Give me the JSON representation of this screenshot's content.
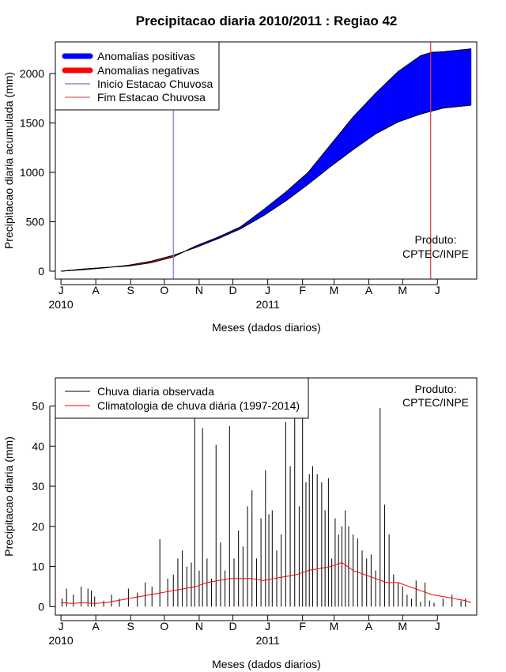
{
  "chart_data": [
    {
      "type": "area",
      "title": "Precipitacao diaria 2010/2011 : Regiao 42",
      "xlabel": "Meses (dados diarios)",
      "ylabel": "Precipitacao diaria acumulada (mm)",
      "xlim_day": [
        -5,
        370
      ],
      "ylim": [
        -80,
        2320
      ],
      "y_ticks": [
        0,
        500,
        1000,
        1500,
        2000
      ],
      "month_ticks": [
        {
          "label": "J",
          "day": 0
        },
        {
          "label": "A",
          "day": 31
        },
        {
          "label": "S",
          "day": 62
        },
        {
          "label": "O",
          "day": 92
        },
        {
          "label": "N",
          "day": 123
        },
        {
          "label": "D",
          "day": 153
        },
        {
          "label": "J",
          "day": 184
        },
        {
          "label": "F",
          "day": 215
        },
        {
          "label": "M",
          "day": 243
        },
        {
          "label": "A",
          "day": 274
        },
        {
          "label": "M",
          "day": 304
        },
        {
          "label": "J",
          "day": 335
        }
      ],
      "year_labels": [
        {
          "label": "2010",
          "day": 0
        },
        {
          "label": "2011",
          "day": 184
        }
      ],
      "legend": {
        "position": "top-left",
        "entries": [
          "Anomalias positivas",
          "Anomalias negativas",
          "Inicio Estacao Chuvosa",
          "Fim Estacao Chuvosa"
        ]
      },
      "annotation": [
        "Produto:",
        "CPTEC/INPE"
      ],
      "onset_day": 100,
      "end_day": 329,
      "series": [
        {
          "name": "Climatologia acumulada",
          "color": "#000000",
          "x": [
            0,
            20,
            40,
            60,
            80,
            100,
            120,
            140,
            160,
            180,
            200,
            220,
            240,
            260,
            280,
            300,
            320,
            340,
            365
          ],
          "values": [
            0,
            15,
            35,
            60,
            100,
            160,
            240,
            330,
            430,
            560,
            710,
            880,
            1060,
            1230,
            1390,
            1510,
            1590,
            1650,
            1680
          ]
        },
        {
          "name": "Observado acumulado",
          "color": "#000000",
          "x": [
            0,
            20,
            40,
            60,
            80,
            100,
            120,
            140,
            160,
            180,
            200,
            220,
            240,
            260,
            280,
            300,
            320,
            330,
            340,
            365
          ],
          "values": [
            0,
            22,
            38,
            52,
            85,
            145,
            255,
            345,
            450,
            620,
            800,
            1000,
            1280,
            1560,
            1800,
            2020,
            2180,
            2215,
            2220,
            2250
          ]
        }
      ],
      "colors": {
        "positive": "#0000ff",
        "negative": "#ff0000",
        "onset_line": "#7b7bd6",
        "end_line": "#d63b3b"
      }
    },
    {
      "type": "bar",
      "xlabel": "Meses (dados diarios)",
      "ylabel": "Precipitacao diaria (mm)",
      "xlim_day": [
        -5,
        370
      ],
      "ylim": [
        -2.1,
        57
      ],
      "y_ticks": [
        0,
        10,
        20,
        30,
        40,
        50
      ],
      "month_ticks": [
        {
          "label": "J",
          "day": 0
        },
        {
          "label": "A",
          "day": 31
        },
        {
          "label": "S",
          "day": 62
        },
        {
          "label": "O",
          "day": 92
        },
        {
          "label": "N",
          "day": 123
        },
        {
          "label": "D",
          "day": 153
        },
        {
          "label": "J",
          "day": 184
        },
        {
          "label": "F",
          "day": 215
        },
        {
          "label": "M",
          "day": 243
        },
        {
          "label": "A",
          "day": 274
        },
        {
          "label": "M",
          "day": 304
        },
        {
          "label": "J",
          "day": 335
        }
      ],
      "year_labels": [
        {
          "label": "2010",
          "day": 0
        },
        {
          "label": "2011",
          "day": 184
        }
      ],
      "legend": {
        "position": "top-left",
        "entries": [
          "Chuva diaria observada",
          "Climatologia de chuva diária (1997-2014)"
        ]
      },
      "annotation": [
        "Produto:",
        "CPTEC/INPE"
      ],
      "series": [
        {
          "name": "Chuva diaria observada",
          "color": "#000000",
          "x": [
            1,
            5,
            11,
            18,
            24,
            27,
            30,
            38,
            45,
            52,
            60,
            68,
            75,
            81,
            88,
            95,
            100,
            104,
            108,
            112,
            116,
            119,
            123,
            126,
            130,
            134,
            138,
            142,
            146,
            150,
            154,
            158,
            162,
            166,
            170,
            174,
            178,
            182,
            185,
            188,
            192,
            196,
            200,
            204,
            208,
            212,
            215,
            218,
            221,
            224,
            228,
            232,
            235,
            238,
            241,
            244,
            247,
            250,
            253,
            256,
            260,
            264,
            268,
            272,
            276,
            280,
            284,
            288,
            292,
            296,
            300,
            304,
            308,
            312,
            316,
            320,
            324,
            328,
            332,
            340,
            348,
            356,
            360
          ],
          "values": [
            2,
            4.5,
            3,
            5,
            4.5,
            4,
            2.5,
            1.5,
            3,
            2,
            4.5,
            3.5,
            6,
            5,
            16.8,
            7,
            8,
            12,
            14,
            10,
            11,
            47,
            9,
            44.5,
            12,
            7,
            40.3,
            16,
            9,
            45,
            12,
            19,
            15,
            25,
            29,
            12,
            22,
            34,
            23,
            24,
            14,
            18,
            46,
            35,
            47,
            25,
            50,
            31,
            33,
            35,
            33,
            31,
            24,
            32,
            12,
            22,
            18,
            20,
            24,
            20,
            18,
            17,
            14,
            12,
            13,
            9,
            49.5,
            25.4,
            18,
            8,
            6,
            5,
            3,
            2,
            6.5,
            1.2,
            6,
            1.5,
            1,
            2,
            3,
            1.5,
            2
          ]
        },
        {
          "name": "Climatologia de chuva diária (1997-2014)",
          "color": "#ff0000",
          "x": [
            0,
            10,
            20,
            30,
            40,
            50,
            60,
            70,
            80,
            90,
            100,
            110,
            120,
            130,
            140,
            150,
            160,
            170,
            180,
            190,
            200,
            210,
            220,
            230,
            240,
            250,
            260,
            270,
            280,
            290,
            300,
            310,
            320,
            330,
            340,
            350,
            360,
            365
          ],
          "values": [
            1,
            0.8,
            1,
            0.8,
            1,
            1.5,
            2,
            2.5,
            3,
            3.5,
            4,
            4.5,
            5,
            6,
            6.5,
            7,
            7,
            7,
            6.5,
            7,
            7.5,
            8,
            9,
            9.5,
            10,
            11,
            9,
            8,
            7,
            6,
            6,
            5,
            4,
            3,
            2.5,
            2,
            1.5,
            1
          ]
        }
      ]
    }
  ]
}
